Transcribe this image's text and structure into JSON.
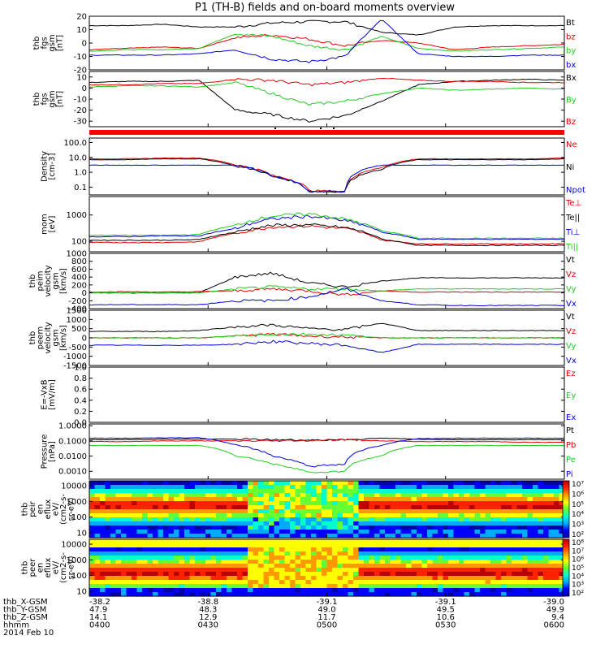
{
  "title": "P1 (TH-B) fields and on-board moments overview",
  "colors": {
    "black": "#000000",
    "red": "#e00000",
    "green": "#22cc22",
    "blue": "#0000dd"
  },
  "chart_data": [
    {
      "type": "line",
      "ylabel": [
        "thb",
        "fgs",
        "gsm",
        "[nT]"
      ],
      "ylim": [
        -20,
        20
      ],
      "yticks": [
        "20",
        "10",
        "0",
        "-10",
        "-20"
      ],
      "series": [
        {
          "name": "Bt",
          "color": "black",
          "values": [
            13,
            13,
            14,
            12,
            12,
            15,
            16,
            16,
            8,
            6,
            12,
            13,
            13,
            13
          ]
        },
        {
          "name": "bz",
          "color": "red",
          "values": [
            -5,
            -4,
            -3,
            -4,
            4,
            6,
            3,
            -2,
            2,
            0,
            -5,
            -3,
            -2,
            -1
          ]
        },
        {
          "name": "by",
          "color": "green",
          "values": [
            -6,
            -5,
            -5,
            -4,
            7,
            5,
            -2,
            -5,
            5,
            -4,
            -6,
            -5,
            -4,
            -3
          ]
        },
        {
          "name": "bx",
          "color": "blue",
          "values": [
            -9,
            -9,
            -9,
            -8,
            -5,
            -12,
            -14,
            -10,
            18,
            -8,
            -10,
            -10,
            -9,
            -9
          ]
        }
      ]
    },
    {
      "type": "line",
      "ylabel": [
        "thb",
        "fgs",
        "gsm",
        "[nT]"
      ],
      "ylim": [
        -35,
        15
      ],
      "yticks": [
        "10",
        "0",
        "-10",
        "-20",
        "-30"
      ],
      "series": [
        {
          "name": "Bx",
          "color": "black",
          "values": [
            5,
            6,
            6,
            7,
            -20,
            -24,
            -30,
            -25,
            -12,
            3,
            6,
            7,
            8,
            7
          ]
        },
        {
          "name": "By",
          "color": "green",
          "values": [
            1,
            2,
            2,
            1,
            5,
            -5,
            -15,
            -12,
            -5,
            0,
            -2,
            -1,
            0,
            -1
          ]
        },
        {
          "name": "Bz",
          "color": "red",
          "values": [
            3,
            3,
            4,
            4,
            8,
            7,
            3,
            5,
            9,
            7,
            6,
            6,
            5,
            5
          ]
        }
      ]
    },
    {
      "type": "line",
      "scale": "log",
      "ylabel": [
        "Density",
        "[cm-3]"
      ],
      "ylim": [
        0.03,
        200
      ],
      "yticks": [
        "100.0",
        "10.0",
        "1.0",
        "0.1"
      ],
      "series": [
        {
          "name": "Ne",
          "color": "red",
          "values": [
            8,
            8,
            9,
            9,
            3,
            0.6,
            0.06,
            0.05,
            2,
            8,
            8,
            8,
            8,
            9
          ]
        },
        {
          "name": "Ni",
          "color": "black",
          "values": [
            7,
            7,
            8,
            8,
            2.5,
            0.5,
            0.05,
            0.05,
            1.5,
            7,
            7,
            7,
            7,
            8
          ]
        },
        {
          "name": "Npot",
          "color": "blue",
          "values": [
            3,
            3,
            3,
            3,
            3,
            0.5,
            0.05,
            0.05,
            3,
            3,
            3,
            3,
            3,
            3
          ]
        }
      ]
    },
    {
      "type": "line",
      "scale": "log",
      "ylabel": [
        "mom",
        "[eV]"
      ],
      "ylim": [
        40,
        5000
      ],
      "yticks": [
        "1000",
        "100"
      ],
      "series": [
        {
          "name": "Te⊥",
          "color": "red",
          "values": [
            90,
            90,
            90,
            95,
            200,
            350,
            380,
            300,
            110,
            80,
            80,
            80,
            80,
            80
          ]
        },
        {
          "name": "Te||",
          "color": "black",
          "values": [
            110,
            110,
            110,
            115,
            220,
            400,
            420,
            330,
            120,
            70,
            70,
            70,
            70,
            70
          ]
        },
        {
          "name": "Ti⊥",
          "color": "blue",
          "values": [
            150,
            150,
            160,
            160,
            300,
            700,
            900,
            600,
            220,
            120,
            120,
            120,
            120,
            120
          ]
        },
        {
          "name": "Ti||",
          "color": "green",
          "values": [
            170,
            170,
            170,
            180,
            400,
            900,
            1100,
            700,
            250,
            130,
            130,
            130,
            130,
            130
          ]
        }
      ]
    },
    {
      "type": "line",
      "ylabel": [
        "thb",
        "peim",
        "velocity",
        "gsm",
        "[km/s]"
      ],
      "ylim": [
        -400,
        1000
      ],
      "yticks": [
        "1000",
        "800",
        "600",
        "400",
        "200",
        "0",
        "-200",
        "-400"
      ],
      "series": [
        {
          "name": "Vt",
          "color": "black",
          "values": [
            0,
            0,
            0,
            0,
            400,
            500,
            250,
            150,
            300,
            380,
            380,
            380,
            380,
            380
          ]
        },
        {
          "name": "Vz",
          "color": "red",
          "values": [
            20,
            30,
            20,
            30,
            50,
            100,
            50,
            -50,
            50,
            20,
            20,
            20,
            20,
            20
          ]
        },
        {
          "name": "Vy",
          "color": "green",
          "values": [
            0,
            0,
            0,
            0,
            100,
            150,
            100,
            100,
            50,
            100,
            100,
            100,
            100,
            100
          ]
        },
        {
          "name": "Vx",
          "color": "blue",
          "values": [
            -300,
            -300,
            -300,
            -300,
            -200,
            -200,
            -100,
            100,
            -200,
            -300,
            -320,
            -320,
            -320,
            -320
          ]
        }
      ]
    },
    {
      "type": "line",
      "ylabel": [
        "thb",
        "peem",
        "velocity",
        "gsm",
        "[km/s]"
      ],
      "ylim": [
        -1500,
        1500
      ],
      "yticks": [
        "1500",
        "1000",
        "500",
        "0",
        "-500",
        "-1000",
        "-1500"
      ],
      "series": [
        {
          "name": "Vt",
          "color": "black",
          "values": [
            350,
            350,
            350,
            400,
            600,
            700,
            500,
            450,
            800,
            400,
            400,
            400,
            400,
            400
          ]
        },
        {
          "name": "Vz",
          "color": "red",
          "values": [
            0,
            0,
            0,
            0,
            100,
            200,
            100,
            50,
            0,
            0,
            0,
            0,
            0,
            0
          ]
        },
        {
          "name": "Vy",
          "color": "green",
          "values": [
            0,
            0,
            0,
            0,
            100,
            200,
            200,
            150,
            0,
            0,
            0,
            0,
            0,
            0
          ]
        },
        {
          "name": "Vx",
          "color": "blue",
          "values": [
            -400,
            -400,
            -400,
            -400,
            -350,
            -200,
            -300,
            -400,
            -800,
            -350,
            -350,
            -350,
            -350,
            -350
          ]
        }
      ]
    },
    {
      "type": "line",
      "ylabel": [
        "E=-VxB",
        "[mV/m]"
      ],
      "ylim": [
        0,
        1
      ],
      "yticks": [
        "1.0",
        "0.8",
        "0.6",
        "0.4",
        "0.2",
        "0.0"
      ],
      "series": [
        {
          "name": "Ez",
          "color": "red",
          "values": []
        },
        {
          "name": "Ey",
          "color": "green",
          "values": []
        },
        {
          "name": "Ex",
          "color": "blue",
          "values": []
        }
      ]
    },
    {
      "type": "line",
      "scale": "log",
      "ylabel": [
        "Pressure",
        "[nPa]"
      ],
      "ylim": [
        0.0003,
        1.3
      ],
      "yticks": [
        "1.0000",
        "0.1000",
        "0.0100",
        "0.0010"
      ],
      "series": [
        {
          "name": "Pt",
          "color": "black",
          "values": [
            0.12,
            0.12,
            0.13,
            0.13,
            0.13,
            0.12,
            0.11,
            0.12,
            0.15,
            0.13,
            0.12,
            0.12,
            0.12,
            0.12
          ]
        },
        {
          "name": "Pb",
          "color": "red",
          "values": [
            0.09,
            0.09,
            0.1,
            0.1,
            0.1,
            0.1,
            0.11,
            0.12,
            0.1,
            0.09,
            0.09,
            0.09,
            0.08,
            0.08
          ]
        },
        {
          "name": "Pe",
          "color": "green",
          "values": [
            0.05,
            0.05,
            0.05,
            0.05,
            0.01,
            0.003,
            0.0008,
            0.001,
            0.01,
            0.05,
            0.05,
            0.05,
            0.05,
            0.05
          ]
        },
        {
          "name": "Pi",
          "color": "blue",
          "values": [
            0.15,
            0.15,
            0.16,
            0.16,
            0.05,
            0.01,
            0.002,
            0.003,
            0.05,
            0.14,
            0.15,
            0.15,
            0.15,
            0.15
          ]
        }
      ]
    },
    {
      "type": "heatmap",
      "scale": "log",
      "ylabel": [
        "thb",
        "peir",
        "en",
        "eflux",
        "eV/",
        "(cm2-s-",
        "sr-eV)"
      ],
      "ylim": [
        5,
        30000
      ],
      "yticks": [
        "10000",
        "1000",
        "100",
        "10"
      ],
      "colorbar_ticks": [
        "10⁷",
        "10⁶",
        "10⁵",
        "10⁴",
        "10³",
        "10²"
      ]
    },
    {
      "type": "heatmap",
      "scale": "log",
      "ylabel": [
        "thb",
        "peer",
        "en",
        "eflux",
        "eV/",
        "(cm2-s-",
        "sr-eV)"
      ],
      "ylim": [
        5,
        30000
      ],
      "yticks": [
        "10000",
        "1000",
        "100",
        "10"
      ],
      "colorbar_ticks": [
        "10⁸",
        "10⁷",
        "10⁶",
        "10⁵",
        "10⁴",
        "10³",
        "10²"
      ]
    }
  ],
  "xaxis": {
    "rows": [
      {
        "label": "thb_X-GSM",
        "values": [
          "-38.2",
          "-38.8",
          "-39.1",
          "-39.1",
          "-39.0"
        ]
      },
      {
        "label": "thb_Y-GSM",
        "values": [
          "47.9",
          "48.3",
          "49.0",
          "49.5",
          "49.9"
        ]
      },
      {
        "label": "thb_Z-GSM",
        "values": [
          "14.1",
          "12.9",
          "11.7",
          "10.6",
          "9.4"
        ]
      },
      {
        "label": "hhmm",
        "values": [
          "0400",
          "0430",
          "0500",
          "0530",
          "0600"
        ]
      }
    ],
    "date": "2014 Feb 10"
  }
}
